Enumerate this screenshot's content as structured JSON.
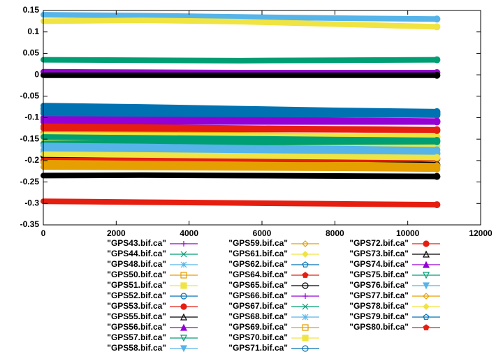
{
  "chart_data": {
    "type": "line",
    "legend": "below",
    "grid": false,
    "x": [
      0,
      2700,
      5400,
      8100,
      10800
    ],
    "xlim": [
      0,
      12000
    ],
    "xticks": [
      0,
      2000,
      4000,
      6000,
      8000,
      10000,
      12000
    ],
    "ylim": [
      -0.35,
      0.15
    ],
    "yticks": [
      -0.35,
      -0.3,
      -0.25,
      -0.2,
      -0.15,
      -0.1,
      -0.05,
      0,
      0.05,
      0.1,
      0.15
    ],
    "series": [
      {
        "name": "\"GPS43.bif.ca\"",
        "color": "#9400d3",
        "values": [
          0.007,
          0.006,
          0.005,
          0.005,
          0.005
        ]
      },
      {
        "name": "\"GPS44.bif.ca\"",
        "color": "#009e73",
        "values": [
          0.035,
          0.034,
          0.033,
          0.034,
          0.035
        ]
      },
      {
        "name": "\"GPS48.bif.ca\"",
        "color": "#56b4e9",
        "values": [
          0.14,
          0.138,
          0.135,
          0.132,
          0.13
        ]
      },
      {
        "name": "\"GPS50.bif.ca\"",
        "color": "#e69f00",
        "values": [
          -0.135,
          -0.137,
          -0.14,
          -0.143,
          -0.145
        ]
      },
      {
        "name": "\"GPS51.bif.ca\"",
        "color": "#f0e442",
        "values": [
          0.125,
          0.127,
          0.124,
          0.118,
          0.112
        ]
      },
      {
        "name": "\"GPS52.bif.ca\"",
        "color": "#0072b2",
        "values": [
          -0.072,
          -0.075,
          -0.079,
          -0.083,
          -0.086
        ]
      },
      {
        "name": "\"GPS53.bif.ca\"",
        "color": "#e51e10",
        "values": [
          -0.295,
          -0.297,
          -0.299,
          -0.301,
          -0.303
        ]
      },
      {
        "name": "\"GPS55.bif.ca\"",
        "color": "#000000",
        "values": [
          -0.235,
          -0.234,
          -0.235,
          -0.236,
          -0.237
        ]
      },
      {
        "name": "\"GPS56.bif.ca\"",
        "color": "#9400d3",
        "values": [
          -0.11,
          -0.11,
          -0.11,
          -0.11,
          -0.11
        ]
      },
      {
        "name": "\"GPS57.bif.ca\"",
        "color": "#009e73",
        "values": [
          -0.085,
          -0.087,
          -0.089,
          -0.09,
          -0.092
        ]
      },
      {
        "name": "\"GPS58.bif.ca\"",
        "color": "#56b4e9",
        "values": [
          -0.175,
          -0.177,
          -0.179,
          -0.181,
          -0.183
        ]
      },
      {
        "name": "\"GPS59.bif.ca\"",
        "color": "#e69f00",
        "values": [
          -0.215,
          -0.216,
          -0.217,
          -0.218,
          -0.22
        ]
      },
      {
        "name": "\"GPS61.bif.ca\"",
        "color": "#f0e442",
        "values": [
          -0.15,
          -0.153,
          -0.157,
          -0.161,
          -0.165
        ]
      },
      {
        "name": "\"GPS62.bif.ca\"",
        "color": "#0072b2",
        "values": [
          -0.08,
          -0.082,
          -0.085,
          -0.088,
          -0.09
        ]
      },
      {
        "name": "\"GPS64.bif.ca\"",
        "color": "#e51e10",
        "values": [
          -0.12,
          -0.122,
          -0.124,
          -0.126,
          -0.128
        ]
      },
      {
        "name": "\"GPS65.bif.ca\"",
        "color": "#000000",
        "values": [
          -0.19,
          -0.195,
          -0.2,
          -0.205,
          -0.21
        ]
      },
      {
        "name": "\"GPS66.bif.ca\"",
        "color": "#9400d3",
        "values": [
          -0.1,
          -0.102,
          -0.104,
          -0.106,
          -0.108
        ]
      },
      {
        "name": "\"GPS67.bif.ca\"",
        "color": "#009e73",
        "values": [
          -0.16,
          -0.159,
          -0.158,
          -0.157,
          -0.156
        ]
      },
      {
        "name": "\"GPS68.bif.ca\"",
        "color": "#56b4e9",
        "values": [
          -0.165,
          -0.167,
          -0.17,
          -0.172,
          -0.175
        ]
      },
      {
        "name": "\"GPS69.bif.ca\"",
        "color": "#e69f00",
        "values": [
          -0.2,
          -0.203,
          -0.206,
          -0.209,
          -0.212
        ]
      },
      {
        "name": "\"GPS70.bif.ca\"",
        "color": "#f0e442",
        "values": [
          -0.14,
          -0.141,
          -0.142,
          -0.143,
          -0.145
        ]
      },
      {
        "name": "\"GPS71.bif.ca\"",
        "color": "#0072b2",
        "values": [
          -0.09,
          -0.091,
          -0.092,
          -0.093,
          -0.094
        ]
      },
      {
        "name": "\"GPS72.bif.ca\"",
        "color": "#e51e10",
        "values": [
          -0.2,
          -0.199,
          -0.198,
          -0.197,
          -0.196
        ]
      },
      {
        "name": "\"GPS73.bif.ca\"",
        "color": "#000000",
        "values": [
          -0.001,
          -0.001,
          -0.001,
          -0.001,
          -0.001
        ]
      },
      {
        "name": "\"GPS74.bif.ca\"",
        "color": "#9400d3",
        "values": [
          -0.105,
          -0.106,
          -0.107,
          -0.108,
          -0.109
        ]
      },
      {
        "name": "\"GPS75.bif.ca\"",
        "color": "#009e73",
        "values": [
          -0.145,
          -0.147,
          -0.149,
          -0.151,
          -0.153
        ]
      },
      {
        "name": "\"GPS76.bif.ca\"",
        "color": "#56b4e9",
        "values": [
          -0.18,
          -0.181,
          -0.182,
          -0.183,
          -0.184
        ]
      },
      {
        "name": "\"GPS77.bif.ca\"",
        "color": "#e69f00",
        "values": [
          -0.205,
          -0.207,
          -0.209,
          -0.211,
          -0.213
        ]
      },
      {
        "name": "\"GPS78.bif.ca\"",
        "color": "#f0e442",
        "values": [
          -0.185,
          -0.187,
          -0.189,
          -0.191,
          -0.193
        ]
      },
      {
        "name": "\"GPS79.bif.ca\"",
        "color": "#0072b2",
        "values": [
          -0.078,
          -0.08,
          -0.082,
          -0.084,
          -0.087
        ]
      },
      {
        "name": "\"GPS80.bif.ca\"",
        "color": "#e51e10",
        "values": [
          -0.125,
          -0.126,
          -0.127,
          -0.128,
          -0.13
        ]
      }
    ]
  }
}
